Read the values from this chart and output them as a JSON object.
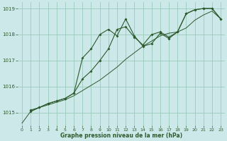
{
  "xlabel": "Graphe pression niveau de la mer (hPa)",
  "bg_color": "#cce8e8",
  "grid_color": "#99ccbb",
  "line_color": "#2d5a2d",
  "ylim": [
    1014.5,
    1019.25
  ],
  "xlim": [
    -0.5,
    23.5
  ],
  "yticks": [
    1015,
    1016,
    1017,
    1018,
    1019
  ],
  "xticks": [
    0,
    1,
    2,
    3,
    4,
    5,
    6,
    7,
    8,
    9,
    10,
    11,
    12,
    13,
    14,
    15,
    16,
    17,
    18,
    19,
    20,
    21,
    22,
    23
  ],
  "series": [
    {
      "x": [
        0,
        1,
        2,
        3,
        4,
        5,
        6,
        7,
        8,
        9,
        10,
        11,
        12,
        13,
        14,
        15,
        16,
        17,
        18,
        19,
        20,
        21,
        22,
        23
      ],
      "y": [
        1014.6,
        1015.05,
        1015.2,
        1015.3,
        1015.4,
        1015.5,
        1015.65,
        1015.85,
        1016.05,
        1016.25,
        1016.5,
        1016.75,
        1017.05,
        1017.3,
        1017.55,
        1017.75,
        1017.95,
        1018.05,
        1018.1,
        1018.25,
        1018.55,
        1018.75,
        1018.9,
        1018.6
      ],
      "marker": false
    },
    {
      "x": [
        1,
        2,
        3,
        4,
        5,
        6,
        7,
        8,
        9,
        10,
        11,
        12,
        13,
        14,
        15,
        16,
        17,
        18,
        19,
        20,
        21,
        22,
        23
      ],
      "y": [
        1015.1,
        1015.2,
        1015.35,
        1015.45,
        1015.55,
        1015.75,
        1017.1,
        1017.45,
        1018.0,
        1018.2,
        1017.95,
        1018.6,
        1017.95,
        1017.55,
        1017.65,
        1018.05,
        1017.85,
        1018.1,
        1018.8,
        1018.95,
        1019.0,
        1019.0,
        1018.6
      ],
      "marker": true
    },
    {
      "x": [
        1,
        2,
        3,
        4,
        5,
        6,
        7,
        8,
        9,
        10,
        11,
        12,
        13,
        14,
        15,
        16,
        17,
        18,
        19,
        20,
        21,
        22,
        23
      ],
      "y": [
        1015.05,
        1015.2,
        1015.35,
        1015.45,
        1015.55,
        1015.75,
        1016.3,
        1016.6,
        1017.0,
        1017.45,
        1018.2,
        1018.3,
        1017.9,
        1017.6,
        1018.0,
        1018.1,
        1017.9,
        1018.1,
        1018.8,
        1018.95,
        1019.0,
        1019.0,
        1018.6
      ],
      "marker": true
    }
  ]
}
